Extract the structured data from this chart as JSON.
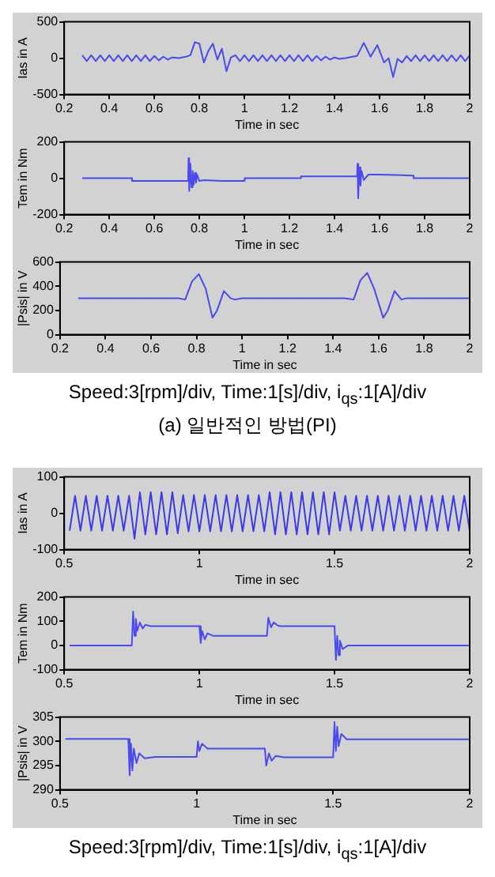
{
  "chart_data": [
    {
      "type": "line",
      "xlabel": "Time in sec",
      "ylabel": "Ias in A",
      "xlim": [
        0.2,
        2
      ],
      "xticks": [
        0.2,
        0.4,
        0.6,
        0.8,
        1,
        1.2,
        1.4,
        1.6,
        1.8,
        2
      ],
      "ylim": [
        -500,
        500
      ],
      "yticks": [
        -500,
        0,
        500
      ],
      "grid": false,
      "legend": false,
      "x": [
        0.28,
        0.3,
        0.32,
        0.34,
        0.36,
        0.38,
        0.4,
        0.42,
        0.44,
        0.46,
        0.48,
        0.5,
        0.52,
        0.54,
        0.56,
        0.58,
        0.6,
        0.62,
        0.64,
        0.66,
        0.68,
        0.71,
        0.74,
        0.76,
        0.78,
        0.8,
        0.82,
        0.84,
        0.86,
        0.88,
        0.9,
        0.92,
        0.94,
        0.96,
        0.98,
        1.0,
        1.02,
        1.04,
        1.06,
        1.08,
        1.1,
        1.12,
        1.14,
        1.16,
        1.18,
        1.2,
        1.22,
        1.24,
        1.26,
        1.28,
        1.3,
        1.32,
        1.34,
        1.36,
        1.38,
        1.4,
        1.42,
        1.45,
        1.48,
        1.5,
        1.53,
        1.56,
        1.59,
        1.62,
        1.64,
        1.66,
        1.68,
        1.7,
        1.72,
        1.74,
        1.76,
        1.78,
        1.8,
        1.82,
        1.84,
        1.86,
        1.88,
        1.9,
        1.92,
        1.94,
        1.96,
        1.98,
        2.0
      ],
      "series": [
        {
          "color": "#4a4aee",
          "values": [
            40,
            -40,
            40,
            -40,
            40,
            -40,
            40,
            -40,
            40,
            -40,
            40,
            -40,
            40,
            -40,
            40,
            -40,
            30,
            -30,
            20,
            -20,
            10,
            0,
            20,
            40,
            220,
            200,
            -60,
            100,
            200,
            -20,
            130,
            -180,
            10,
            40,
            -40,
            40,
            -40,
            40,
            -40,
            40,
            -40,
            40,
            -40,
            40,
            -40,
            40,
            -40,
            40,
            -40,
            40,
            -40,
            30,
            -30,
            20,
            -20,
            10,
            -10,
            0,
            20,
            30,
            210,
            20,
            180,
            -60,
            0,
            -260,
            -10,
            -60,
            30,
            -40,
            40,
            -40,
            40,
            -40,
            40,
            -40,
            40,
            -40,
            40,
            -40,
            40,
            -40,
            40
          ]
        }
      ]
    },
    {
      "type": "line",
      "xlabel": "Time in sec",
      "ylabel": "Tem in Nm",
      "xlim": [
        0.2,
        2
      ],
      "xticks": [
        0.2,
        0.4,
        0.6,
        0.8,
        1,
        1.2,
        1.4,
        1.6,
        1.8,
        2
      ],
      "ylim": [
        -200,
        200
      ],
      "yticks": [
        -200,
        0,
        200
      ],
      "grid": false,
      "legend": false,
      "x": [
        0.28,
        0.5,
        0.501,
        0.75,
        0.752,
        0.755,
        0.76,
        0.765,
        0.77,
        0.775,
        0.78,
        0.785,
        0.79,
        0.8,
        0.82,
        0.9,
        1.0,
        1.001,
        1.25,
        1.251,
        1.5,
        1.502,
        1.505,
        1.51,
        1.515,
        1.52,
        1.53,
        1.55,
        1.6,
        1.75,
        1.751,
        2.0
      ],
      "series": [
        {
          "color": "#4a4aee",
          "values": [
            0,
            0,
            -15,
            -15,
            110,
            -70,
            80,
            -50,
            40,
            -35,
            30,
            -25,
            20,
            -15,
            -10,
            -15,
            -15,
            0,
            0,
            10,
            10,
            80,
            -110,
            60,
            -40,
            40,
            -10,
            20,
            20,
            15,
            0,
            0
          ]
        }
      ]
    },
    {
      "type": "line",
      "xlabel": "Time in sec",
      "ylabel": "|Psis| in V",
      "xlim": [
        0.2,
        2
      ],
      "xticks": [
        0.2,
        0.4,
        0.6,
        0.8,
        1,
        1.2,
        1.4,
        1.6,
        1.8,
        2
      ],
      "ylim": [
        0,
        600
      ],
      "yticks": [
        0,
        200,
        400,
        600
      ],
      "grid": false,
      "legend": false,
      "annotations": [
        "Speed:3[rpm]/div,  Time:1[s]/div,  i$_{qs}$:1[A]/div",
        "(a) 일반적인 방법(PI)"
      ],
      "x": [
        0.28,
        0.72,
        0.75,
        0.78,
        0.81,
        0.84,
        0.87,
        0.89,
        0.92,
        0.95,
        0.97,
        1.0,
        1.45,
        1.49,
        1.52,
        1.55,
        1.58,
        1.62,
        1.64,
        1.67,
        1.7,
        1.72,
        2.0
      ],
      "series": [
        {
          "color": "#4a4aee",
          "values": [
            300,
            300,
            290,
            440,
            500,
            380,
            140,
            200,
            360,
            300,
            290,
            300,
            300,
            290,
            450,
            510,
            380,
            140,
            200,
            360,
            290,
            300,
            300
          ]
        }
      ]
    },
    {
      "type": "line",
      "xlabel": "Time in sec",
      "ylabel": "Ias in A",
      "xlim": [
        0.5,
        2
      ],
      "xticks": [
        0.5,
        1,
        1.5,
        2
      ],
      "ylim": [
        -100,
        100
      ],
      "yticks": [
        -100,
        0,
        100
      ],
      "grid": false,
      "legend": false,
      "x": [
        0.52,
        0.54,
        0.56,
        0.58,
        0.6,
        0.62,
        0.64,
        0.66,
        0.68,
        0.7,
        0.72,
        0.74,
        0.76,
        0.78,
        0.8,
        0.82,
        0.84,
        0.86,
        0.88,
        0.9,
        0.92,
        0.94,
        0.96,
        0.98,
        1.0,
        1.02,
        1.04,
        1.06,
        1.08,
        1.1,
        1.12,
        1.14,
        1.16,
        1.18,
        1.2,
        1.22,
        1.24,
        1.26,
        1.28,
        1.3,
        1.32,
        1.34,
        1.36,
        1.38,
        1.4,
        1.42,
        1.44,
        1.46,
        1.48,
        1.5,
        1.52,
        1.54,
        1.56,
        1.58,
        1.6,
        1.62,
        1.64,
        1.66,
        1.68,
        1.7,
        1.72,
        1.74,
        1.76,
        1.78,
        1.8,
        1.82,
        1.84,
        1.86,
        1.88,
        1.9,
        1.92,
        1.94,
        1.96,
        1.98,
        2.0
      ],
      "series": [
        {
          "color": "#3a3ae8",
          "values": [
            -48,
            48,
            -48,
            48,
            -48,
            48,
            -48,
            48,
            -48,
            48,
            -48,
            48,
            -70,
            58,
            -58,
            58,
            -58,
            58,
            -58,
            58,
            -55,
            50,
            -50,
            50,
            -50,
            50,
            -50,
            50,
            -50,
            50,
            -50,
            50,
            -50,
            50,
            -50,
            50,
            -50,
            58,
            -58,
            58,
            -58,
            58,
            -58,
            58,
            -58,
            58,
            -58,
            58,
            -58,
            58,
            -48,
            48,
            -48,
            48,
            -48,
            48,
            -48,
            48,
            -48,
            48,
            -48,
            48,
            -48,
            48,
            -48,
            48,
            -48,
            48,
            -48,
            48,
            -48,
            48,
            -48,
            48,
            -48
          ]
        }
      ]
    },
    {
      "type": "line",
      "xlabel": "Time in sec",
      "ylabel": "Tem in Nm",
      "xlim": [
        0.5,
        2
      ],
      "xticks": [
        0.5,
        1,
        1.5,
        2
      ],
      "ylim": [
        -100,
        200
      ],
      "yticks": [
        -100,
        0,
        100,
        200
      ],
      "grid": false,
      "legend": false,
      "x": [
        0.52,
        0.75,
        0.755,
        0.76,
        0.765,
        0.77,
        0.78,
        0.79,
        0.8,
        0.82,
        1.0,
        1.005,
        1.01,
        1.02,
        1.03,
        1.05,
        1.25,
        1.255,
        1.265,
        1.275,
        1.29,
        1.3,
        1.5,
        1.505,
        1.51,
        1.515,
        1.52,
        1.53,
        1.55,
        2.0
      ],
      "series": [
        {
          "color": "#4a4aee",
          "values": [
            0,
            0,
            140,
            40,
            110,
            60,
            95,
            70,
            85,
            80,
            80,
            10,
            60,
            25,
            50,
            40,
            40,
            115,
            75,
            95,
            82,
            80,
            80,
            -60,
            40,
            -40,
            20,
            -15,
            0,
            0
          ]
        }
      ]
    },
    {
      "type": "line",
      "xlabel": "Time in sec",
      "ylabel": "|Psis| in V",
      "xlim": [
        0.5,
        2
      ],
      "xticks": [
        0.5,
        1,
        1.5,
        2
      ],
      "ylim": [
        290,
        305
      ],
      "yticks": [
        290,
        295,
        300,
        305
      ],
      "grid": false,
      "legend": false,
      "annotations": [
        "Speed:3[rpm]/div,  Time:1[s]/div,  i$_{qs}$:1[A]/div"
      ],
      "x": [
        0.52,
        0.75,
        0.755,
        0.76,
        0.765,
        0.77,
        0.78,
        0.79,
        0.81,
        0.85,
        1.0,
        1.005,
        1.01,
        1.02,
        1.04,
        1.25,
        1.255,
        1.265,
        1.275,
        1.29,
        1.32,
        1.5,
        1.505,
        1.51,
        1.515,
        1.52,
        1.53,
        1.55,
        2.0
      ],
      "series": [
        {
          "color": "#4a4aee",
          "values": [
            300.5,
            300.5,
            293,
            299.5,
            294,
            298.5,
            295.5,
            297.5,
            296.5,
            296.8,
            296.8,
            300,
            298,
            299.5,
            298.5,
            298.5,
            295,
            297.5,
            296,
            297,
            296.7,
            296.7,
            304,
            298,
            303,
            299,
            301.5,
            300.4,
            300.4
          ]
        }
      ]
    }
  ]
}
